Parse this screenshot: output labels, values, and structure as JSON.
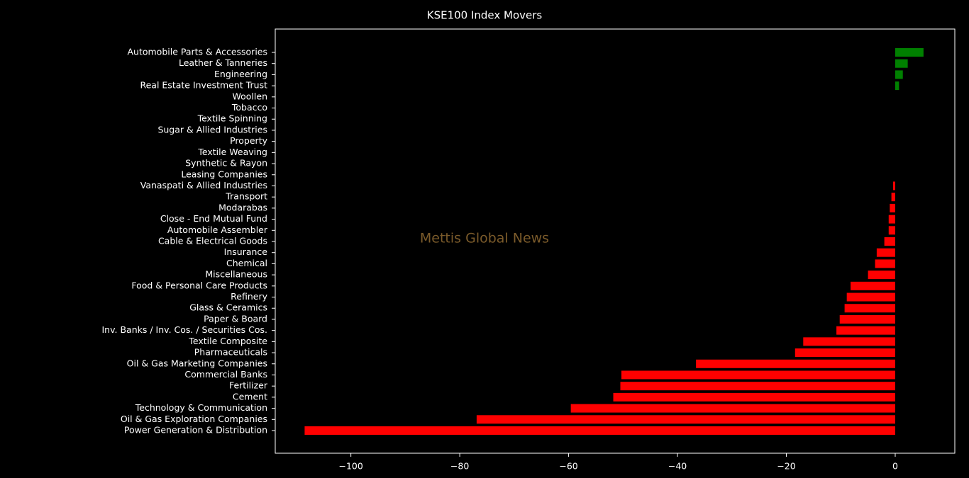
{
  "chart_data": {
    "type": "barh",
    "title": "KSE100 Index Movers",
    "annotation": "Mettis Global News",
    "categories": [
      "Automobile Parts & Accessories",
      "Leather & Tanneries",
      "Engineering",
      "Real Estate Investment Trust",
      "Woollen",
      "Tobacco",
      "Textile Spinning",
      "Sugar & Allied Industries",
      "Property",
      "Textile Weaving",
      "Synthetic & Rayon",
      "Leasing Companies",
      "Vanaspati & Allied Industries",
      "Transport",
      "Modarabas",
      "Close - End Mutual Fund",
      "Automobile Assembler",
      "Cable & Electrical Goods",
      "Insurance",
      "Chemical",
      "Miscellaneous",
      "Food & Personal Care Products",
      "Refinery",
      "Glass & Ceramics",
      "Paper & Board",
      "Inv. Banks / Inv. Cos. / Securities Cos.",
      "Textile Composite",
      "Pharmaceuticals",
      "Oil & Gas Marketing Companies",
      "Commercial Banks",
      "Fertilizer",
      "Cement",
      "Technology & Communication",
      "Oil & Gas Exploration Companies",
      "Power Generation & Distribution"
    ],
    "values": [
      5.2,
      2.3,
      1.4,
      0.7,
      0,
      0,
      0,
      0,
      0,
      0,
      0,
      0,
      -0.4,
      -0.7,
      -1.0,
      -1.2,
      -1.2,
      -2.0,
      -3.4,
      -3.7,
      -5.0,
      -8.2,
      -8.9,
      -9.3,
      -10.2,
      -10.8,
      -16.9,
      -18.4,
      -36.6,
      -50.3,
      -50.5,
      -51.8,
      -59.6,
      -76.9,
      -108.5
    ],
    "positive_color": "green",
    "negative_color": "red",
    "xlim": [
      -113.9,
      10.95
    ],
    "xticks": [
      {
        "value": -100,
        "label": "−100"
      },
      {
        "value": -80,
        "label": "−80"
      },
      {
        "value": -60,
        "label": "−60"
      },
      {
        "value": -40,
        "label": "−40"
      },
      {
        "value": -20,
        "label": "−20"
      },
      0
    ]
  }
}
